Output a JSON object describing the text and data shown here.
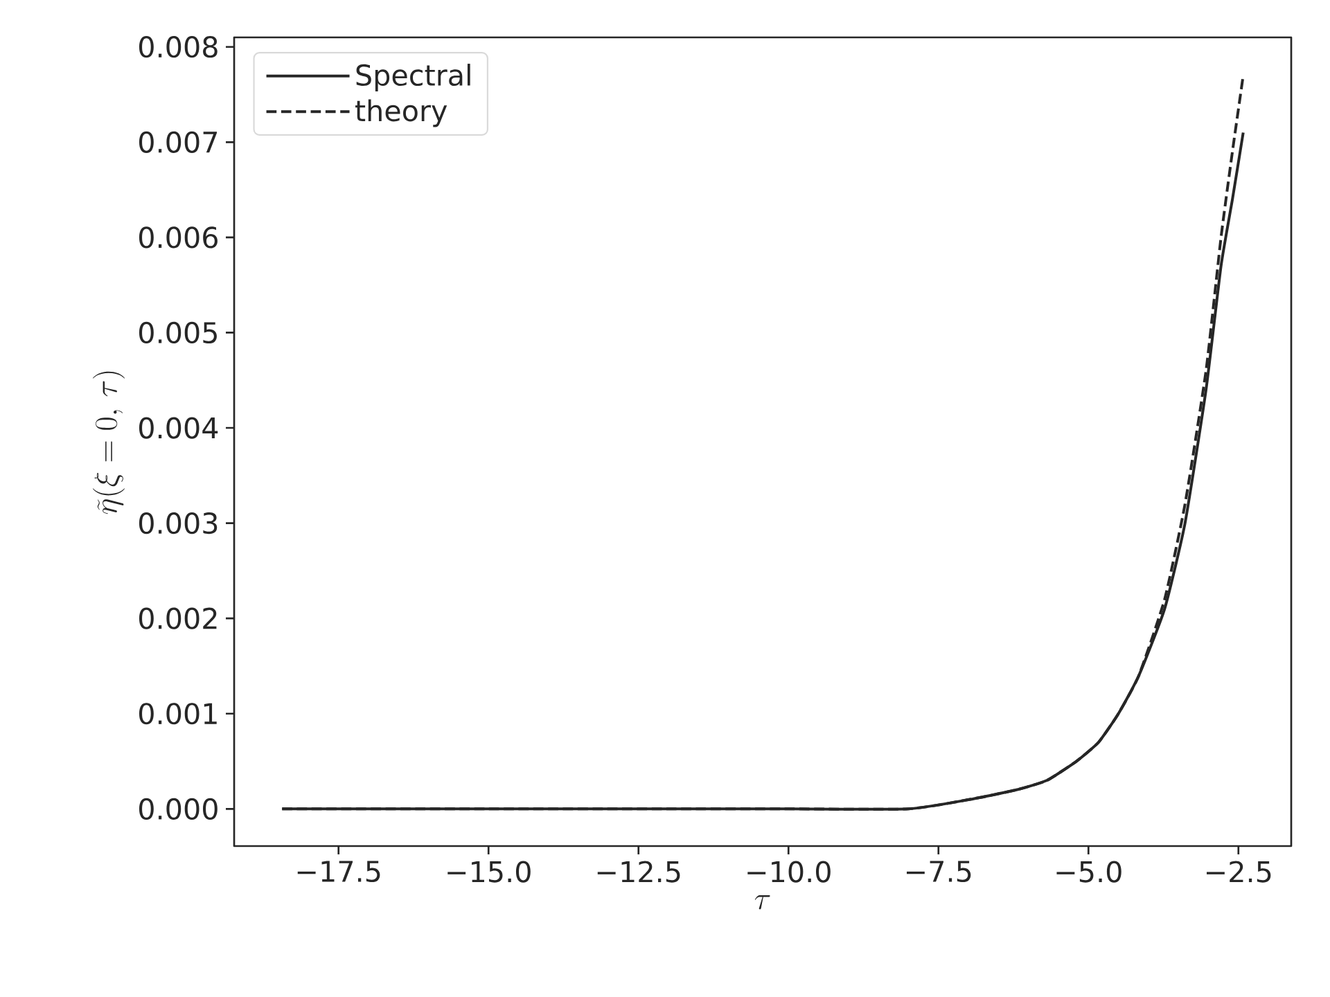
{
  "chart_data": {
    "type": "line",
    "xlabel": "\\tau",
    "ylabel": "\\widetilde{\\eta}(\\xi = 0,\\, \\tau)",
    "legend": "top left",
    "grid": false,
    "xlim": [
      -19.24,
      -1.62
    ],
    "ylim": [
      -0.00039,
      0.0081
    ],
    "xticks": [
      {
        "value": -17.5,
        "label": "−17.5"
      },
      {
        "value": -15,
        "label": "−15.0"
      },
      {
        "value": -12.5,
        "label": "−12.5"
      },
      {
        "value": -10,
        "label": "−10.0"
      },
      {
        "value": -7.5,
        "label": "−7.5"
      },
      {
        "value": -5,
        "label": "−5.0"
      },
      {
        "value": -2.5,
        "label": "−2.5"
      }
    ],
    "yticks": [
      {
        "value": 0,
        "label": "0.000"
      },
      {
        "value": 0.001,
        "label": "0.001"
      },
      {
        "value": 0.002,
        "label": "0.002"
      },
      {
        "value": 0.003,
        "label": "0.003"
      },
      {
        "value": 0.004,
        "label": "0.004"
      },
      {
        "value": 0.005,
        "label": "0.005"
      },
      {
        "value": 0.006,
        "label": "0.006"
      },
      {
        "value": 0.007,
        "label": "0.007"
      },
      {
        "value": 0.008,
        "label": "0.008"
      }
    ],
    "series": [
      {
        "name": "Spectral",
        "color": "#262626",
        "line_style": "solid",
        "x": [
          -18.44,
          -15,
          -12,
          -10,
          -8,
          -6.97,
          -6.2,
          -5.69,
          -5.2,
          -4.83,
          -4.5,
          -4.16,
          -3.73,
          -3.39,
          -3.04,
          -2.79,
          -2.6,
          -2.42
        ],
        "values": [
          0,
          0,
          0,
          0,
          0,
          0.0001,
          0.0002,
          0.0003,
          0.0005,
          0.0007,
          0.001,
          0.0014,
          0.0021,
          0.003,
          0.0044,
          0.0057,
          0.0064,
          0.0071
        ]
      },
      {
        "name": "theory",
        "color": "#262626",
        "line_style": "dashed",
        "x": [
          -18.44,
          -15,
          -12,
          -10,
          -8,
          -6.97,
          -6.2,
          -5.69,
          -5.2,
          -4.83,
          -4.5,
          -4.16,
          -3.73,
          -3.39,
          -3.04,
          -2.79,
          -2.6,
          -2.42
        ],
        "values": [
          0,
          0,
          0,
          0,
          0,
          0.0001,
          0.0002,
          0.0003,
          0.0005,
          0.0007,
          0.001,
          0.0014,
          0.0022,
          0.0032,
          0.0046,
          0.006,
          0.0069,
          0.0077
        ]
      }
    ]
  }
}
